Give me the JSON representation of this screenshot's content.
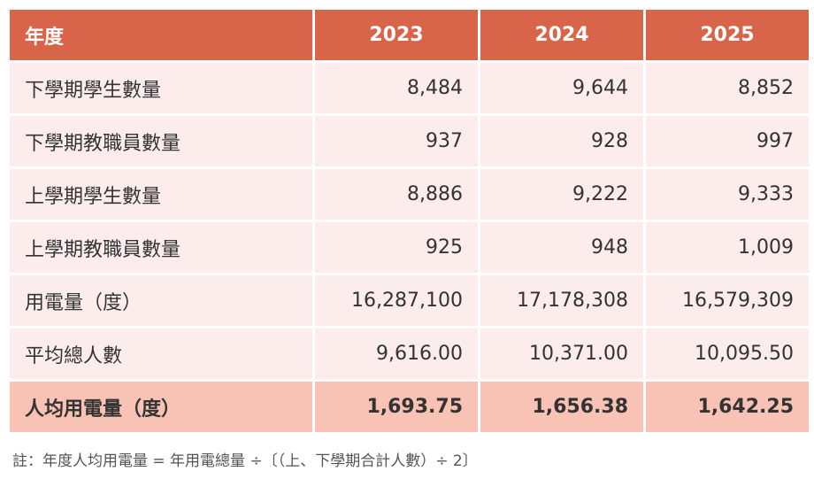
{
  "table": {
    "header": [
      "年度",
      "2023",
      "2024",
      "2025"
    ],
    "rows": [
      {
        "label": "下學期學生數量",
        "values": [
          "8,484",
          "9,644",
          "8,852"
        ]
      },
      {
        "label": "下學期教職員數量",
        "values": [
          "937",
          "928",
          "997"
        ]
      },
      {
        "label": "上學期學生數量",
        "values": [
          "8,886",
          "9,222",
          "9,333"
        ]
      },
      {
        "label": "上學期教職員數量",
        "values": [
          "925",
          "948",
          "1,009"
        ]
      },
      {
        "label": "用電量（度）",
        "values": [
          "16,287,100",
          "17,178,308",
          "16,579,309"
        ]
      },
      {
        "label": "平均總人數",
        "values": [
          "9,616.00",
          "10,371.00",
          "10,095.50"
        ]
      }
    ],
    "total": {
      "label": "人均用電量（度）",
      "values": [
        "1,693.75",
        "1,656.38",
        "1,642.25"
      ]
    }
  },
  "note": "註：年度人均用電量 = 年用電總量 ÷〔（上、下學期合計人數）÷ 2〕",
  "colors": {
    "header_bg": "#d8654a",
    "row_bg": "#fcecec",
    "total_bg": "#f8c3b5"
  }
}
